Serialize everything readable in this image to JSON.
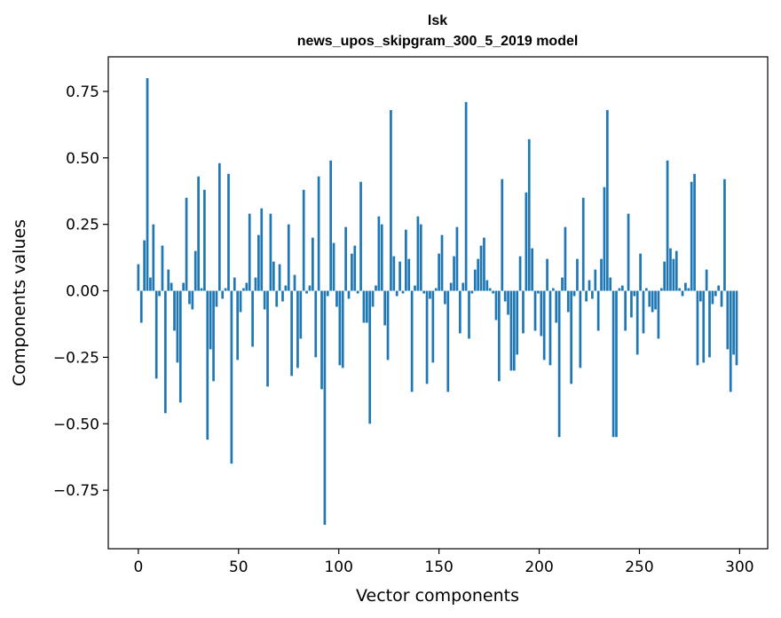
{
  "chart_data": {
    "type": "bar",
    "title": "lsk",
    "subtitle": "news_upos_skipgram_300_5_2019 model",
    "xlabel": "Vector components",
    "ylabel": "Components values",
    "xlim": [
      -15,
      314
    ],
    "ylim": [
      -0.97,
      0.88
    ],
    "xticks": [
      0,
      50,
      100,
      150,
      200,
      250,
      300
    ],
    "yticks": [
      -0.75,
      -0.5,
      -0.25,
      0.0,
      0.25,
      0.5,
      0.75
    ],
    "ytick_labels": [
      "−0.75",
      "−0.50",
      "−0.25",
      "0.00",
      "0.25",
      "0.50",
      "0.75"
    ],
    "bar_color": "#1f77b4",
    "values": [
      0.1,
      -0.12,
      0.19,
      0.8,
      0.05,
      0.25,
      -0.33,
      -0.02,
      0.17,
      -0.46,
      0.08,
      0.03,
      -0.15,
      -0.27,
      -0.42,
      0.03,
      0.35,
      -0.05,
      -0.07,
      0.15,
      0.43,
      0.01,
      0.38,
      -0.56,
      -0.22,
      -0.34,
      -0.06,
      0.48,
      -0.03,
      0.01,
      0.44,
      -0.65,
      0.05,
      -0.26,
      -0.08,
      0.01,
      0.03,
      0.29,
      -0.21,
      0.05,
      0.21,
      0.31,
      -0.07,
      -0.36,
      0.29,
      0.11,
      -0.06,
      0.1,
      -0.04,
      0.02,
      0.25,
      -0.32,
      0.06,
      -0.29,
      -0.18,
      0.38,
      -0.01,
      0.02,
      0.2,
      -0.25,
      0.43,
      -0.37,
      -0.88,
      -0.02,
      0.49,
      0.18,
      -0.06,
      -0.28,
      -0.29,
      0.24,
      -0.03,
      0.14,
      0.17,
      -0.01,
      0.41,
      -0.12,
      -0.12,
      -0.5,
      -0.06,
      0.02,
      0.28,
      0.25,
      -0.13,
      -0.26,
      0.68,
      0.13,
      -0.02,
      0.11,
      -0.01,
      0.23,
      0.12,
      -0.38,
      0.02,
      0.28,
      0.25,
      -0.01,
      -0.35,
      -0.03,
      -0.27,
      0.01,
      0.14,
      0.21,
      -0.05,
      -0.38,
      0.03,
      0.13,
      0.24,
      -0.16,
      0.03,
      0.71,
      -0.18,
      -0.01,
      0.08,
      0.12,
      0.17,
      0.2,
      0.04,
      0.01,
      -0.01,
      -0.11,
      -0.34,
      0.42,
      -0.04,
      -0.09,
      -0.3,
      -0.3,
      -0.24,
      0.13,
      -0.16,
      0.37,
      0.57,
      0.16,
      -0.15,
      -0.01,
      -0.17,
      -0.26,
      0.12,
      -0.28,
      0.01,
      -0.12,
      -0.55,
      0.05,
      0.24,
      -0.08,
      -0.35,
      -0.02,
      0.12,
      -0.29,
      0.35,
      -0.04,
      0.04,
      -0.03,
      0.08,
      -0.15,
      0.12,
      0.39,
      0.68,
      0.05,
      -0.55,
      -0.55,
      0.01,
      0.02,
      -0.15,
      0.29,
      -0.1,
      -0.02,
      -0.24,
      0.14,
      -0.16,
      0.01,
      -0.06,
      -0.08,
      -0.07,
      -0.18,
      0.01,
      0.11,
      0.49,
      0.16,
      0.12,
      0.15,
      0.01,
      -0.02,
      0.03,
      0.01,
      0.41,
      0.44,
      -0.28,
      -0.04,
      -0.27,
      0.08,
      -0.25,
      -0.05,
      -0.02,
      0.02,
      -0.06,
      0.42,
      -0.22,
      -0.38,
      -0.24,
      -0.28
    ]
  }
}
